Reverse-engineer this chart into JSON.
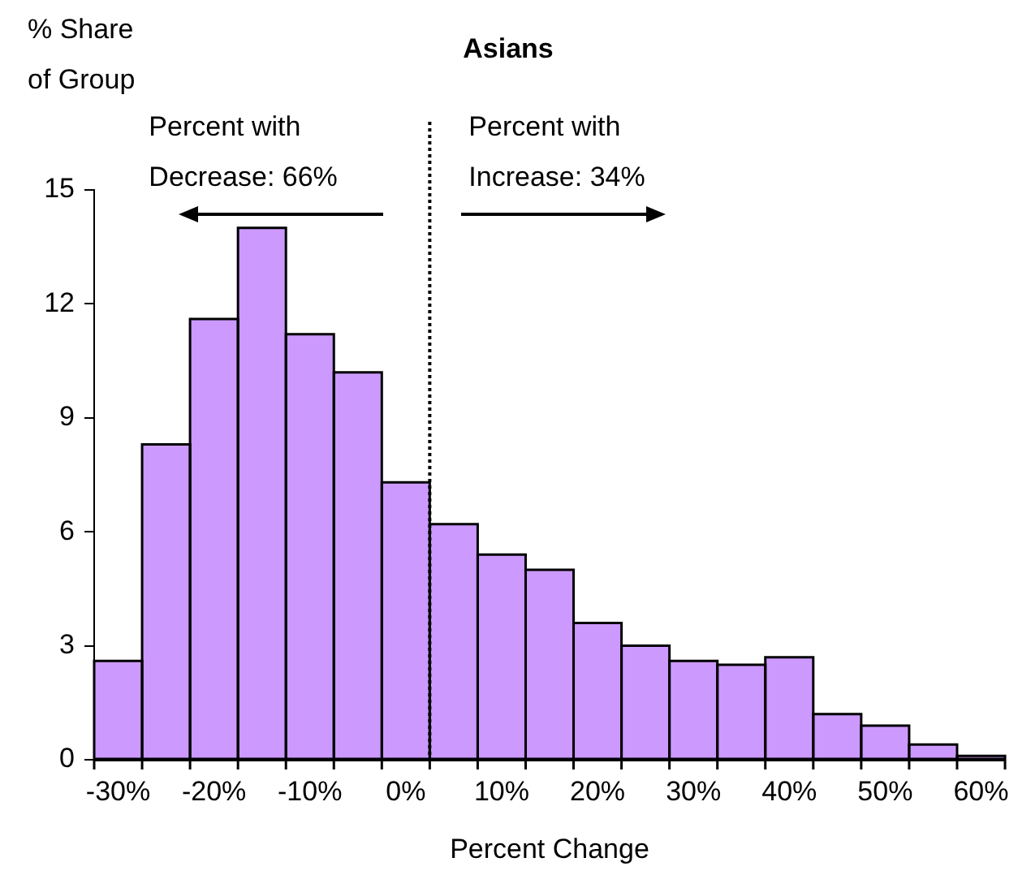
{
  "chart_data": {
    "type": "histogram",
    "title": "Asians",
    "ylabel": "% Share\nof Group",
    "xlabel": "Percent Change",
    "bins": [
      -32.5,
      -27.5,
      -22.5,
      -17.5,
      -12.5,
      -7.5,
      -2.5,
      2.5,
      7.5,
      12.5,
      17.5,
      22.5,
      27.5,
      32.5,
      37.5,
      42.5,
      47.5,
      52.5,
      57.5,
      62.5
    ],
    "values": [
      2.6,
      8.3,
      11.6,
      14.0,
      11.2,
      10.2,
      7.3,
      6.2,
      5.4,
      5.0,
      3.6,
      3.0,
      2.6,
      2.5,
      2.7,
      1.2,
      0.9,
      0.4,
      0.1
    ],
    "color": "#cc99ff",
    "xlim": [
      -32.5,
      62.5
    ],
    "xticks": [
      {
        "value": -32.5,
        "label": null
      },
      {
        "value": -30,
        "label": "-30%"
      },
      {
        "value": -27.5,
        "label": null
      },
      {
        "value": -22.5,
        "label": null
      },
      {
        "value": -20,
        "label": "-20%"
      },
      {
        "value": -17.5,
        "label": null
      },
      {
        "value": -12.5,
        "label": null
      },
      {
        "value": -10,
        "label": "-10%"
      },
      {
        "value": -7.5,
        "label": null
      },
      {
        "value": -2.5,
        "label": null
      },
      {
        "value": 0,
        "label": "0%"
      },
      {
        "value": 2.5,
        "label": null
      },
      {
        "value": 7.5,
        "label": null
      },
      {
        "value": 10,
        "label": "10%"
      },
      {
        "value": 12.5,
        "label": null
      },
      {
        "value": 17.5,
        "label": null
      },
      {
        "value": 20,
        "label": "20%"
      },
      {
        "value": 22.5,
        "label": null
      },
      {
        "value": 27.5,
        "label": null
      },
      {
        "value": 30,
        "label": "30%"
      },
      {
        "value": 32.5,
        "label": null
      },
      {
        "value": 37.5,
        "label": null
      },
      {
        "value": 40,
        "label": "40%"
      },
      {
        "value": 42.5,
        "label": null
      },
      {
        "value": 47.5,
        "label": null
      },
      {
        "value": 50,
        "label": "50%"
      },
      {
        "value": 52.5,
        "label": null
      },
      {
        "value": 57.5,
        "label": null
      },
      {
        "value": 60,
        "label": "60%"
      },
      {
        "value": 62.5,
        "label": null
      }
    ],
    "ylim": [
      0,
      15
    ],
    "yticks": [
      0,
      3,
      6,
      9,
      12,
      15
    ],
    "ref_lines": [
      {
        "axis": "x",
        "value": 2.5,
        "line_style": "dotted",
        "color": "#000000"
      }
    ],
    "annotations": [
      "Percent with\nDecrease: 66%",
      "Percent with\nIncrease: 34%"
    ],
    "grid": false,
    "legend": false
  }
}
